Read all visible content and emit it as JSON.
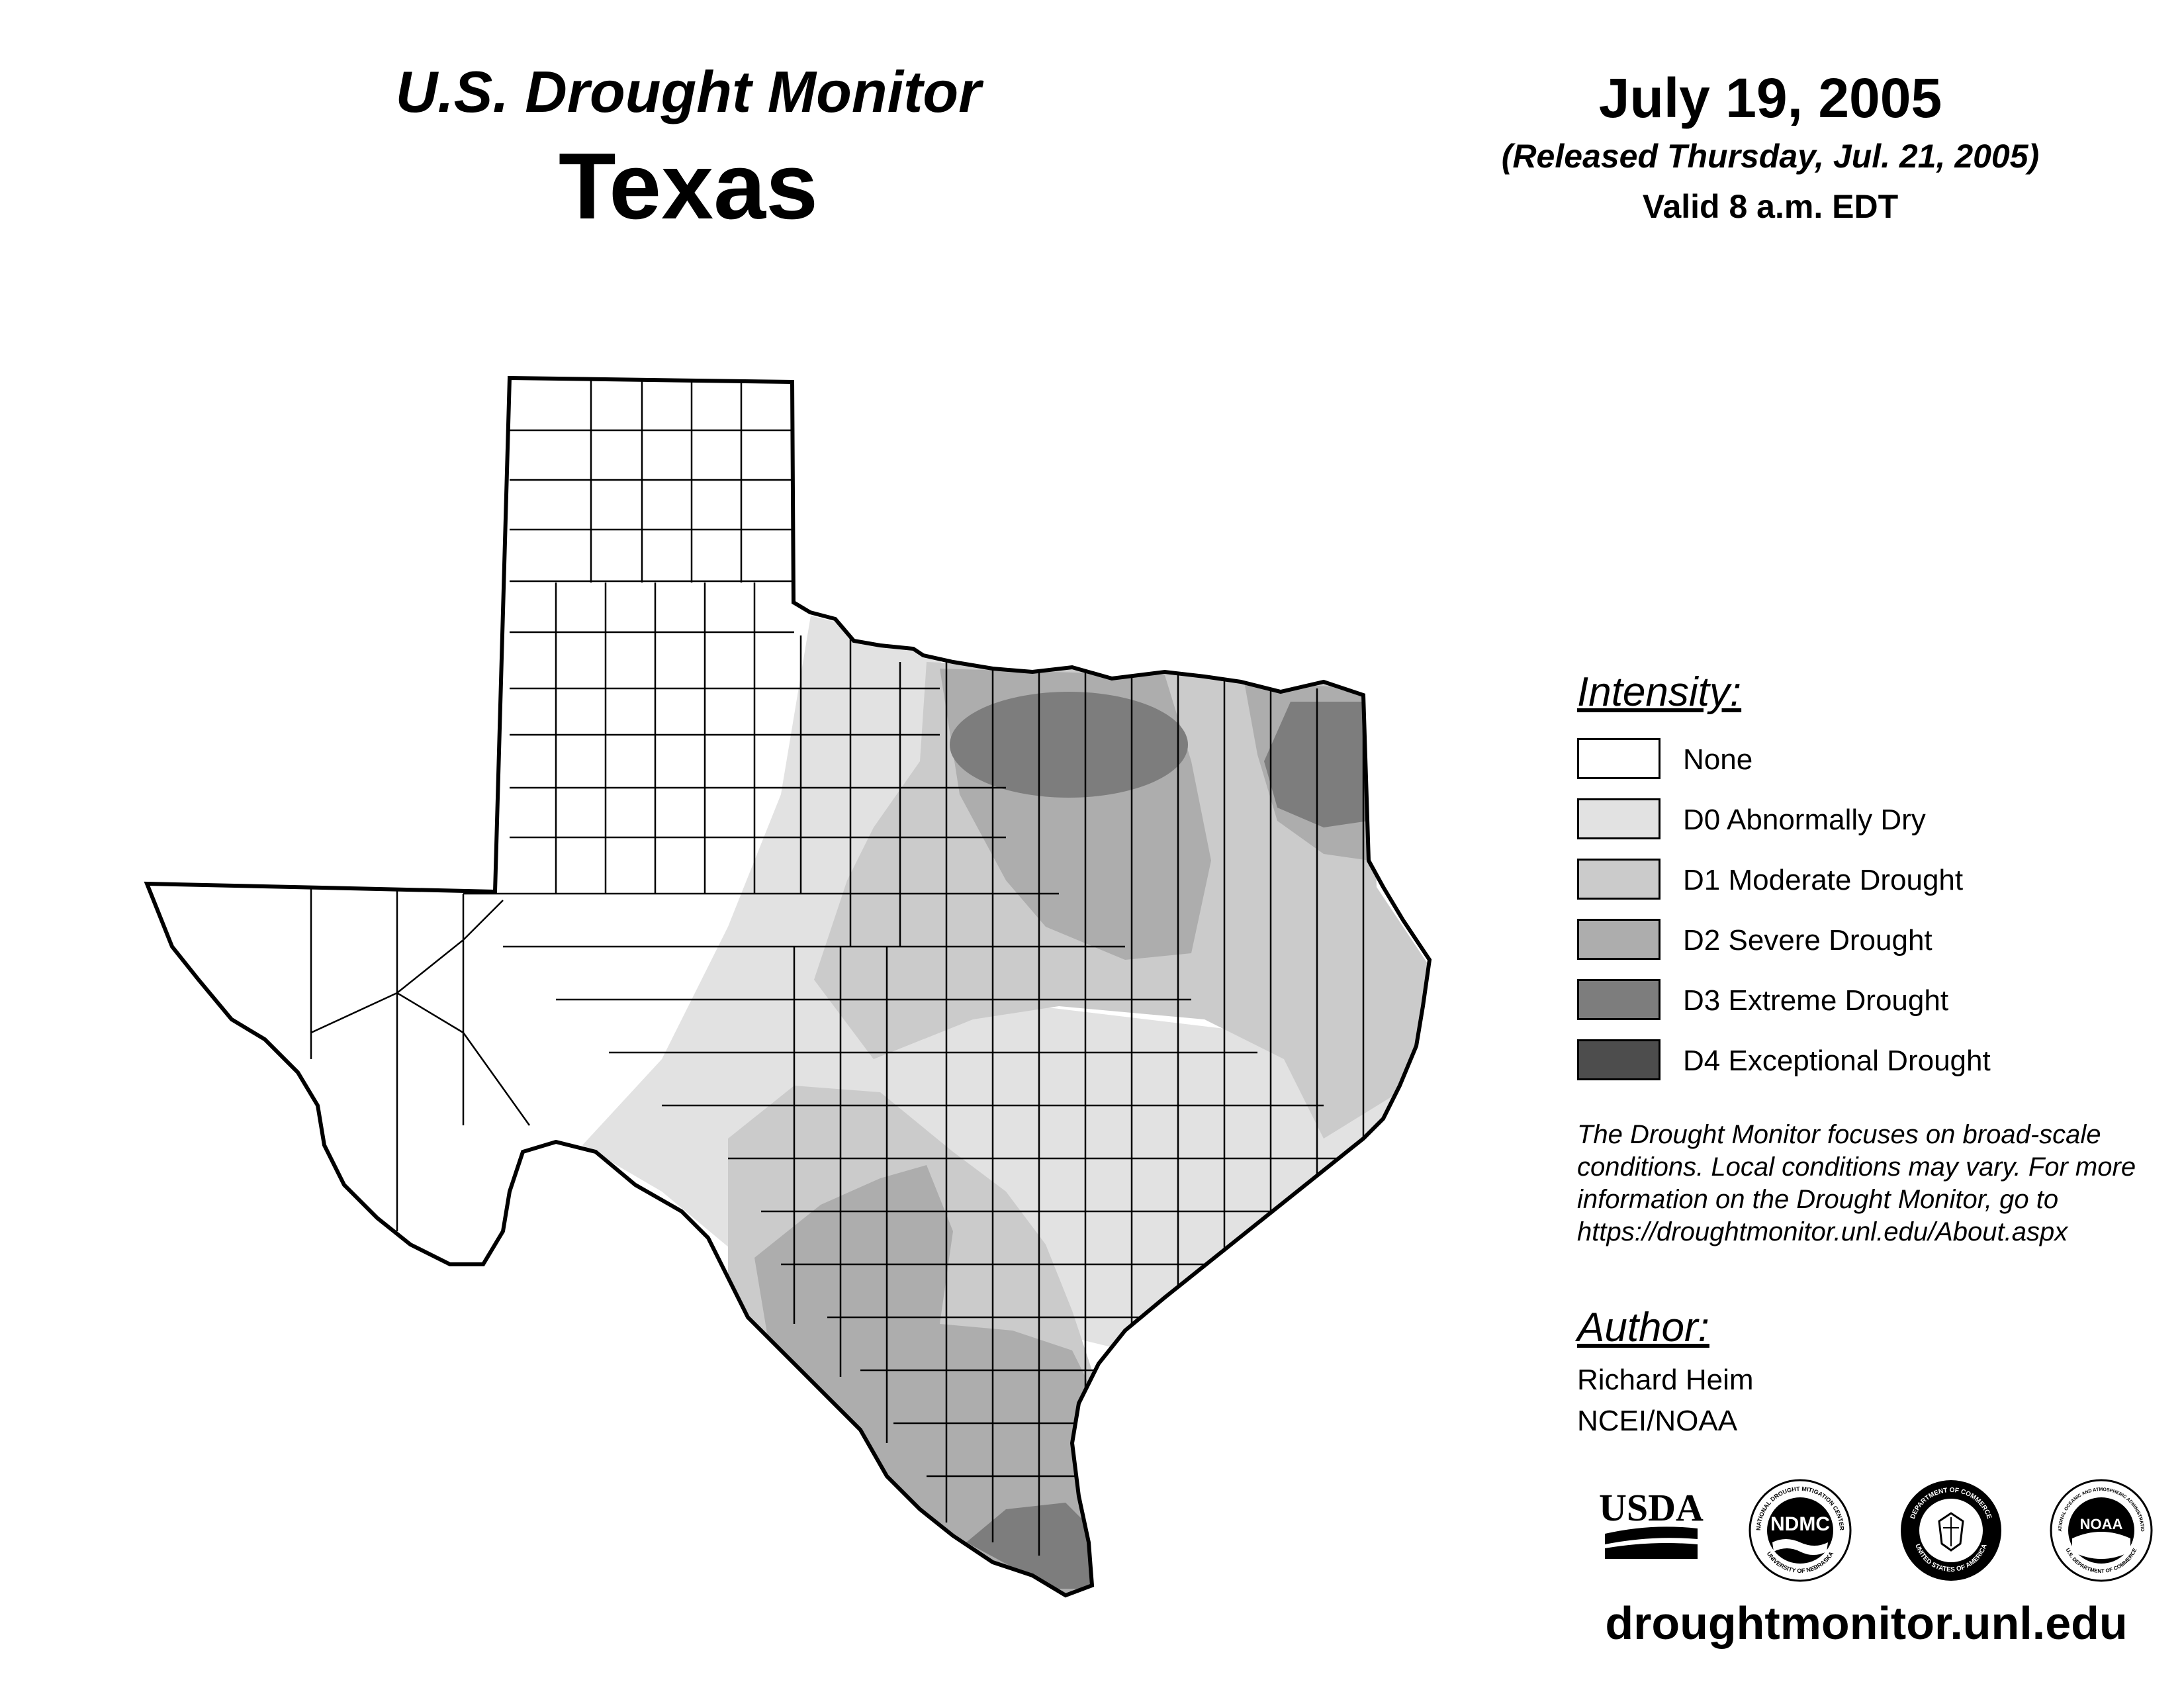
{
  "header": {
    "title": "U.S. Drought Monitor",
    "region": "Texas"
  },
  "date": {
    "main": "July 19, 2005",
    "released": "(Released Thursday, Jul. 21, 2005)",
    "valid": "Valid 8 a.m. EDT"
  },
  "legend": {
    "title": "Intensity:",
    "items": [
      {
        "label": "None",
        "color": "#ffffff"
      },
      {
        "label": "D0 Abnormally Dry",
        "color": "#e2e2e2"
      },
      {
        "label": "D1 Moderate Drought",
        "color": "#cbcbcb"
      },
      {
        "label": "D2 Severe Drought",
        "color": "#adadad"
      },
      {
        "label": "D3 Extreme Drought",
        "color": "#7d7d7d"
      },
      {
        "label": "D4 Exceptional Drought",
        "color": "#4d4d4d"
      }
    ]
  },
  "disclaimer": {
    "lines": [
      "The Drought Monitor focuses on broad-scale",
      "conditions. Local conditions may vary. For more",
      "information on the Drought Monitor, go to",
      "https://droughtmonitor.unl.edu/About.aspx"
    ]
  },
  "author": {
    "title": "Author:",
    "name": "Richard Heim",
    "org": "NCEI/NOAA"
  },
  "logos": {
    "usda": "USDA",
    "ndmc": "NDMC",
    "ndmc_ring": "NATIONAL DROUGHT MITIGATION CENTER",
    "ndmc_ring_bottom": "UNIVERSITY OF NEBRASKA",
    "commerce_ring": "DEPARTMENT OF COMMERCE",
    "commerce_ring_bottom": "UNITED STATES OF AMERICA",
    "noaa": "NOAA",
    "noaa_ring": "NATIONAL OCEANIC AND ATMOSPHERIC ADMINISTRATION",
    "noaa_ring_bottom": "U.S. DEPARTMENT OF COMMERCE"
  },
  "site_url": "droughtmonitor.unl.edu",
  "map": {
    "region": "Texas",
    "drought_areas": [
      {
        "category": "D0",
        "area": "central Texas belt from the Panhandle edge to the upper coast"
      },
      {
        "category": "D1",
        "area": "north-central, east and south Texas"
      },
      {
        "category": "D2",
        "area": "north-central Texas, northeast Texas and south Texas"
      },
      {
        "category": "D3",
        "area": "north Texas, far northeast Texas and the lower Rio Grande Valley"
      }
    ]
  }
}
